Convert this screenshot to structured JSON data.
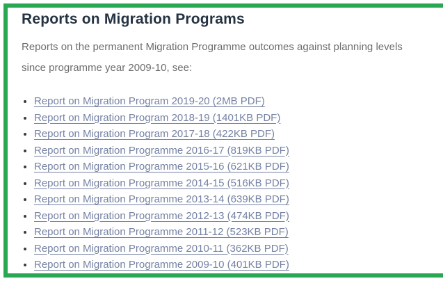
{
  "page": {
    "title": "Reports on Migration Programs",
    "intro": "Reports on the permanent Migration Programme outcomes against planning levels since programme year 2009-10, see:",
    "links": [
      {
        "label": "Report on Migration Program 2019-20 (2MB PDF)"
      },
      {
        "label": "Report on Migration Program 2018-19 (1401KB PDF)"
      },
      {
        "label": "Report on Migration Program 2017-18 (422KB PDF)"
      },
      {
        "label": "Report on Migration Programme 2016-17 (819KB PDF)"
      },
      {
        "label": "Report on Migration Programme 2015-16 (621KB PDF)"
      },
      {
        "label": "Report on Migration Programme 2014-15 (516KB PDF)"
      },
      {
        "label": "Report on Migration Programme 2013-14 (639KB PDF)"
      },
      {
        "label": "Report on Migration Programme 2012-13 (474KB PDF)"
      },
      {
        "label": "Report on Migration Programme 2011-12 (523KB PDF)"
      },
      {
        "label": "Report on Migration Programme 2010-11 (362KB PDF)"
      },
      {
        "label": "Report on Migration Programme 2009-10 (401KB PDF)"
      }
    ]
  },
  "colors": {
    "border_green": "#29a853",
    "title_text": "#253241",
    "body_text": "#6d6d70",
    "link_text": "#7582a3",
    "bullet": "#3a3a3a",
    "background": "#ffffff"
  }
}
